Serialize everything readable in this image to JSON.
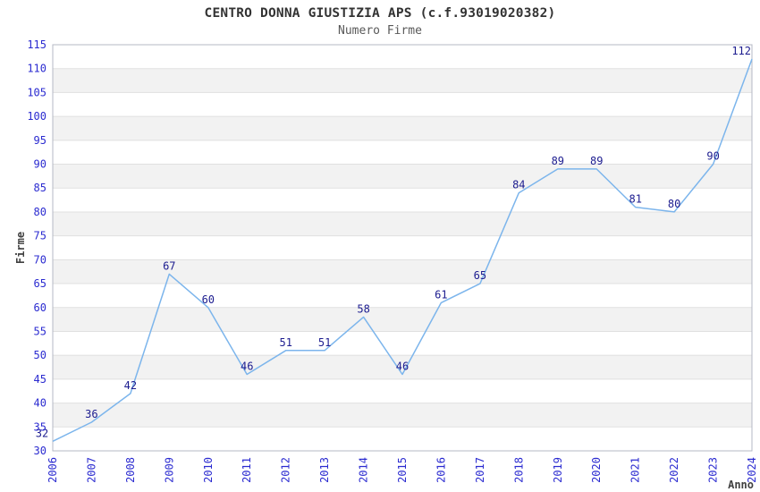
{
  "chart_data": {
    "type": "line",
    "title": "CENTRO DONNA GIUSTIZIA APS (c.f.93019020382)",
    "subtitle": "Numero Firme",
    "xlabel": "Anno",
    "ylabel": "Firme",
    "categories": [
      "2006",
      "2007",
      "2008",
      "2009",
      "2010",
      "2011",
      "2012",
      "2013",
      "2014",
      "2015",
      "2016",
      "2017",
      "2018",
      "2019",
      "2020",
      "2021",
      "2022",
      "2023",
      "2024"
    ],
    "series": [
      {
        "name": "Numero Firme",
        "values": [
          32,
          36,
          42,
          67,
          60,
          46,
          51,
          51,
          58,
          46,
          61,
          65,
          84,
          89,
          89,
          81,
          80,
          90,
          112
        ]
      }
    ],
    "ylim": [
      30,
      115
    ],
    "ytick_step": 5,
    "grid": true,
    "bands": true,
    "legend": false,
    "data_labels": true,
    "colors": {
      "line": "#7cb5ec",
      "data_label": "#1c1c8f",
      "tick_label": "#2b2bd0",
      "axis_title": "#404040",
      "title": "#333333",
      "subtitle": "#595959",
      "band": "#f2f2f2",
      "grid_line": "#e0e0e0",
      "plot_border": "#b4b8c4",
      "background": "#ffffff"
    }
  }
}
